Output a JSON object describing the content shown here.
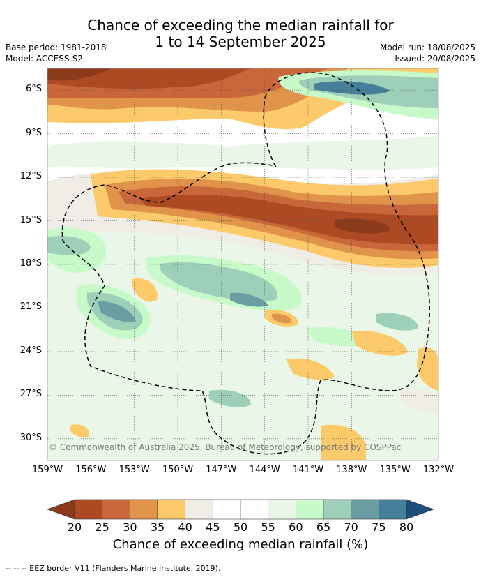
{
  "header": {
    "title_line1": "Chance of exceeding the median rainfall for",
    "title_line2": "1 to 14 September 2025",
    "base_period": "Base period: 1981-2018",
    "model": "Model: ACCESS-S2",
    "model_run": "Model run: 18/08/2025",
    "issued": "Issued: 20/08/2025"
  },
  "copyright": "© Commonwealth of Australia 2025, Bureau of Meteorology, supported by COSPPac",
  "colorbar": {
    "title": "Chance of exceeding median rainfall (%)",
    "ticks": [
      "20",
      "25",
      "30",
      "35",
      "40",
      "45",
      "50",
      "55",
      "60",
      "65",
      "70",
      "75",
      "80"
    ],
    "colors": [
      "#8b3a1a",
      "#ad4a24",
      "#c9673a",
      "#e0934a",
      "#fcca6a",
      "#f0ece6",
      "#ffffff",
      "#ffffff",
      "#e9f6e8",
      "#c8f9c8",
      "#9dcfb9",
      "#6b9ea3",
      "#467f9a",
      "#1f4e7a"
    ]
  },
  "footer": "--  --  -- EEZ border V11 (Flanders Marine Institute, 2019).",
  "chart_data": {
    "type": "heatmap",
    "title": "Chance of exceeding the median rainfall for 1 to 14 September 2025",
    "xlabel": "",
    "ylabel": "",
    "xlim": [
      -159,
      -132
    ],
    "ylim": [
      -31.5,
      -4.5
    ],
    "x_ticks": [
      "159°W",
      "156°W",
      "153°W",
      "150°W",
      "147°W",
      "144°W",
      "141°W",
      "138°W",
      "135°W",
      "132°W"
    ],
    "y_ticks": [
      "6°S",
      "9°S",
      "12°S",
      "15°S",
      "18°S",
      "21°S",
      "24°S",
      "27°S",
      "30°S"
    ],
    "grid": true,
    "value_unit": "%",
    "levels": [
      20,
      25,
      30,
      35,
      40,
      45,
      50,
      55,
      60,
      65,
      70,
      75,
      80
    ],
    "regions": [
      {
        "label": "northern dry band",
        "lon": [
          -159,
          -141
        ],
        "lat": [
          -4.5,
          -8.5
        ],
        "value": 25
      },
      {
        "label": "northeast wet patch",
        "lon": [
          -140,
          -132
        ],
        "lat": [
          -5,
          -8
        ],
        "value": 75
      },
      {
        "label": "central dry band",
        "lon": [
          -154,
          -132
        ],
        "lat": [
          -12.5,
          -17.5
        ],
        "value": 25
      },
      {
        "label": "western wet patch",
        "lon": [
          -159,
          -150
        ],
        "lat": [
          -16,
          -23
        ],
        "value": 70
      },
      {
        "label": "central wet patch",
        "lon": [
          -152,
          -143
        ],
        "lat": [
          -18,
          -22
        ],
        "value": 65
      },
      {
        "label": "eastern dry patch",
        "lon": [
          -138,
          -132
        ],
        "lat": [
          -23,
          -27
        ],
        "value": 35
      }
    ]
  }
}
